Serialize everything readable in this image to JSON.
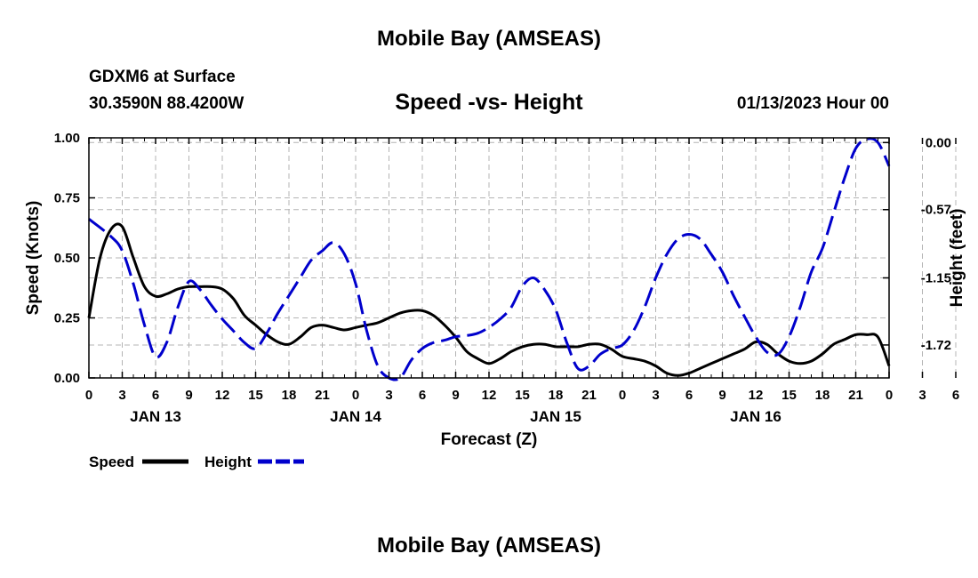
{
  "page": {
    "title_top": "Mobile Bay (AMSEAS)",
    "title_bottom": "Mobile Bay (AMSEAS)",
    "station": "GDXM6 at Surface",
    "coords": "30.3590N  88.4200W",
    "chart_title": "Speed -vs- Height",
    "datetime": "01/13/2023 Hour 00",
    "colors": {
      "speed": "#000000",
      "height": "#0000cc",
      "grid": "#b4b4b4"
    }
  },
  "chart_data": {
    "type": "line",
    "title": "Speed -vs- Height",
    "xlabel": "Forecast (Z)",
    "ylabel": "Speed (Knots)",
    "y2label": "Height (feet)",
    "xlim": [
      0,
      72
    ],
    "ylim": [
      0,
      1
    ],
    "y2lim": [
      -2.0,
      0.04
    ],
    "x_tick_step_hours": 3,
    "x_ticks": [
      "0",
      "3",
      "6",
      "9",
      "12",
      "15",
      "18",
      "21",
      "0",
      "3",
      "6",
      "9",
      "12",
      "15",
      "18",
      "21",
      "0",
      "3",
      "6",
      "9",
      "12",
      "15",
      "18",
      "21",
      "0",
      "3",
      "6",
      "9",
      "12",
      "15",
      "18",
      "21",
      "0"
    ],
    "date_labels": [
      {
        "label": "JAN 13",
        "hour": 6
      },
      {
        "label": "JAN 14",
        "hour": 24
      },
      {
        "label": "JAN 15",
        "hour": 42
      },
      {
        "label": "JAN 16",
        "hour": 60
      }
    ],
    "y_ticks": [
      "0.00",
      "0.25",
      "0.50",
      "0.75",
      "1.00"
    ],
    "y_tick_values": [
      0,
      0.25,
      0.5,
      0.75,
      1.0
    ],
    "y2_ticks": [
      "0.00",
      "-0.57",
      "-1.15",
      "-1.72"
    ],
    "y2_tick_values": [
      0.0,
      -0.57,
      -1.15,
      -1.72
    ],
    "legend": [
      {
        "label": "Speed",
        "style": "solid"
      },
      {
        "label": "Height",
        "style": "dashed"
      }
    ],
    "series": [
      {
        "name": "Speed",
        "axis": "left",
        "x": [
          0,
          1,
          2,
          3,
          4,
          5,
          6,
          7,
          8,
          9,
          10,
          11,
          12,
          13,
          14,
          15,
          16,
          17,
          18,
          19,
          20,
          21,
          22,
          23,
          24,
          25,
          26,
          27,
          28,
          29,
          30,
          31,
          32,
          33,
          34,
          35,
          36,
          37,
          38,
          39,
          40,
          41,
          42,
          43,
          44,
          45,
          46,
          47,
          48,
          49,
          50,
          51,
          52,
          53,
          54,
          55,
          56,
          57,
          58,
          59,
          60,
          61,
          62,
          63,
          64,
          65,
          66,
          67,
          68,
          69,
          70,
          71,
          72
        ],
        "values": [
          0.25,
          0.5,
          0.62,
          0.63,
          0.5,
          0.38,
          0.34,
          0.35,
          0.37,
          0.38,
          0.38,
          0.38,
          0.37,
          0.33,
          0.26,
          0.22,
          0.18,
          0.15,
          0.14,
          0.17,
          0.21,
          0.22,
          0.21,
          0.2,
          0.21,
          0.22,
          0.23,
          0.25,
          0.27,
          0.28,
          0.28,
          0.26,
          0.22,
          0.17,
          0.11,
          0.08,
          0.06,
          0.08,
          0.11,
          0.13,
          0.14,
          0.14,
          0.13,
          0.13,
          0.13,
          0.14,
          0.14,
          0.12,
          0.09,
          0.08,
          0.07,
          0.05,
          0.02,
          0.01,
          0.02,
          0.04,
          0.06,
          0.08,
          0.1,
          0.12,
          0.15,
          0.14,
          0.1,
          0.07,
          0.06,
          0.07,
          0.1,
          0.14,
          0.16,
          0.18,
          0.18,
          0.17,
          0.05
        ]
      },
      {
        "name": "Height",
        "axis": "right",
        "x": [
          0,
          2,
          3,
          4,
          5,
          6,
          7,
          8,
          9,
          10,
          11,
          12,
          13,
          14,
          15,
          16,
          17,
          18,
          19,
          20,
          21,
          22,
          23,
          24,
          25,
          26,
          27,
          28,
          29,
          30,
          31,
          32,
          33,
          34,
          35,
          36,
          37,
          38,
          39,
          40,
          41,
          42,
          43,
          44,
          45,
          46,
          47,
          48,
          49,
          50,
          51,
          52,
          53,
          54,
          55,
          56,
          57,
          58,
          59,
          60,
          61,
          62,
          63,
          64,
          65,
          66,
          67,
          68,
          69,
          70,
          71,
          72
        ],
        "values": [
          -0.65,
          -0.8,
          -0.92,
          -1.2,
          -1.55,
          -1.82,
          -1.7,
          -1.4,
          -1.18,
          -1.25,
          -1.38,
          -1.5,
          -1.6,
          -1.7,
          -1.75,
          -1.62,
          -1.45,
          -1.3,
          -1.15,
          -1.0,
          -0.92,
          -0.85,
          -0.95,
          -1.2,
          -1.6,
          -1.9,
          -2.0,
          -2.0,
          -1.85,
          -1.75,
          -1.7,
          -1.68,
          -1.65,
          -1.64,
          -1.62,
          -1.57,
          -1.5,
          -1.4,
          -1.22,
          -1.15,
          -1.25,
          -1.42,
          -1.7,
          -1.92,
          -1.9,
          -1.8,
          -1.75,
          -1.72,
          -1.6,
          -1.4,
          -1.15,
          -0.95,
          -0.82,
          -0.78,
          -0.82,
          -0.95,
          -1.1,
          -1.3,
          -1.48,
          -1.65,
          -1.78,
          -1.8,
          -1.65,
          -1.4,
          -1.1,
          -0.9,
          -0.6,
          -0.3,
          -0.05,
          0.03,
          0.0,
          -0.2
        ]
      }
    ]
  }
}
